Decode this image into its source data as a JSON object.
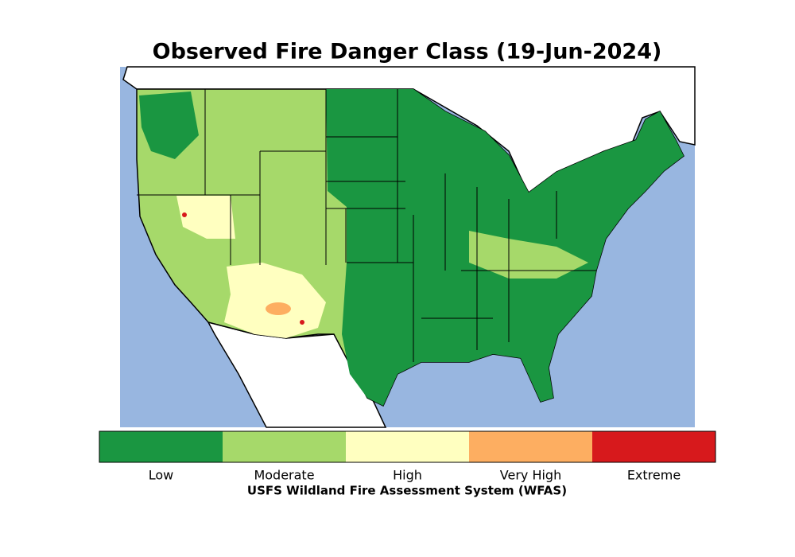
{
  "title": "Observed Fire Danger Class (19-Jun-2024)",
  "legend": {
    "label": "USFS Wildland Fire Assessment System (WFAS)",
    "classes": [
      {
        "label": "Low",
        "color": "#1a9641"
      },
      {
        "label": "Moderate",
        "color": "#a6d96a"
      },
      {
        "label": "High",
        "color": "#ffffc0"
      },
      {
        "label": "Very High",
        "color": "#fdae61"
      },
      {
        "label": "Extreme",
        "color": "#d7191c"
      }
    ]
  }
}
